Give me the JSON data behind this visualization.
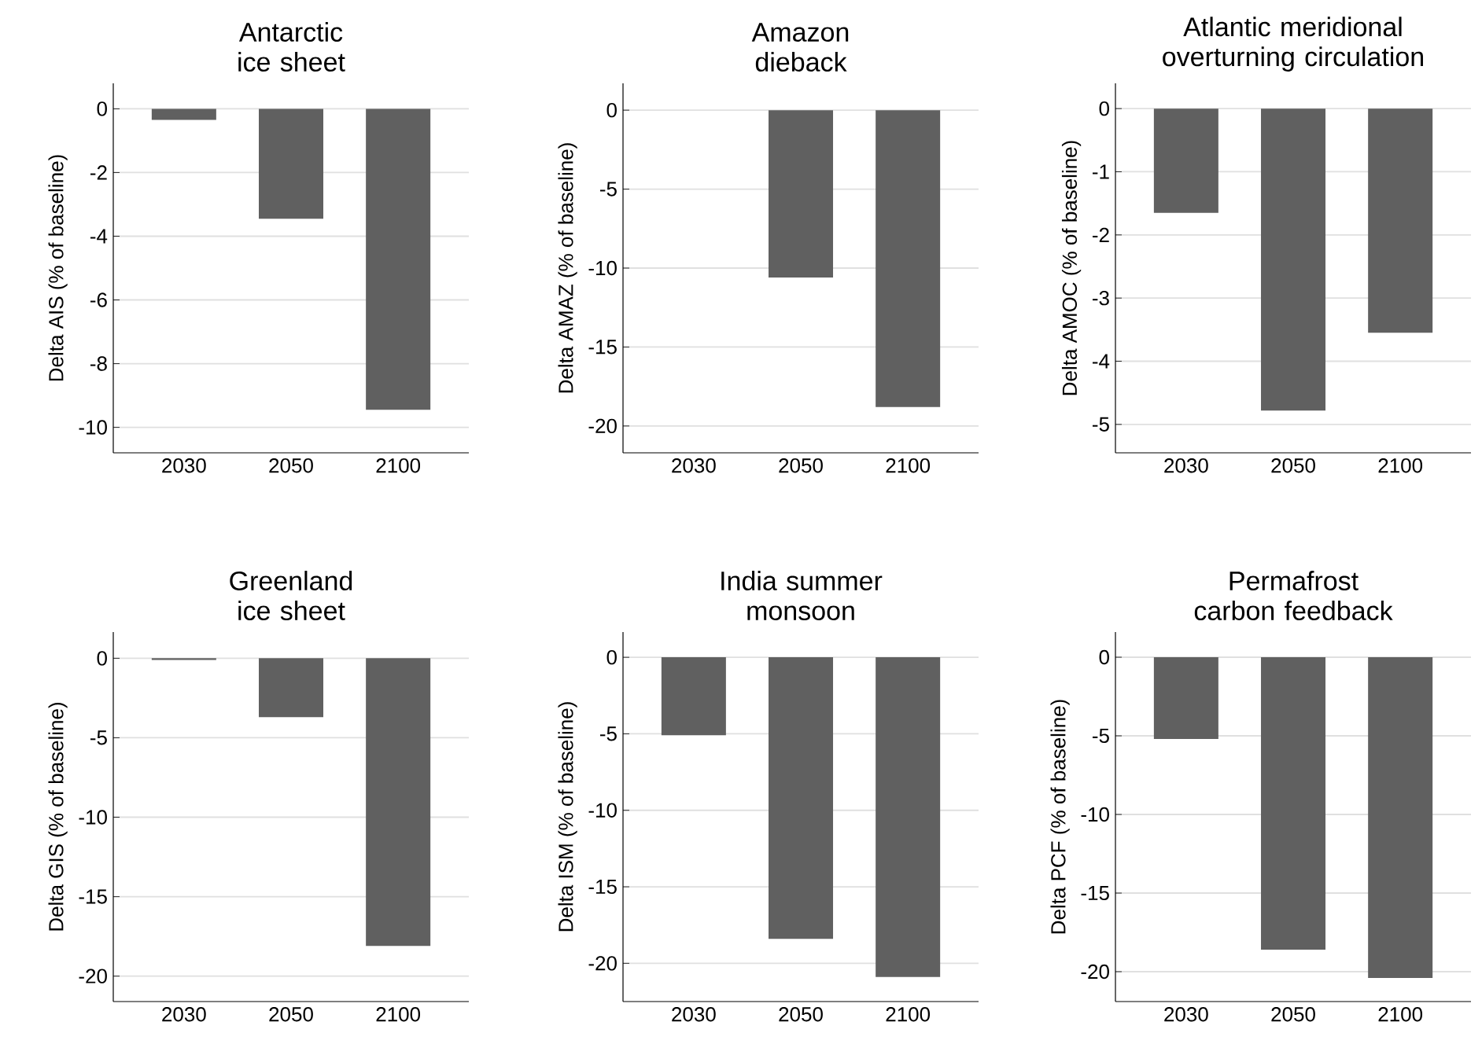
{
  "chart_data": [
    {
      "type": "bar",
      "title": "Antarctic ice sheet",
      "ylabel": "Delta AIS (% of baseline)",
      "categories": [
        "2030",
        "2050",
        "2100"
      ],
      "values": [
        -0.35,
        -3.45,
        -9.45
      ],
      "color": "#606060",
      "ylim": [
        -10.8,
        0.8
      ],
      "yticks": [
        0,
        -2,
        -4,
        -6,
        -8,
        -10
      ],
      "grid": "y"
    },
    {
      "type": "bar",
      "title": "Amazon dieback",
      "ylabel": "Delta AMAZ (% of baseline)",
      "categories": [
        "2030",
        "2050",
        "2100"
      ],
      "values": [
        0,
        -10.6,
        -18.8
      ],
      "color": "#606060",
      "ylim": [
        -21.7,
        1.7
      ],
      "yticks": [
        0,
        -5,
        -10,
        -15,
        -20
      ],
      "grid": "y"
    },
    {
      "type": "bar",
      "title": "Atlantic meridional overturning circulation",
      "ylabel": "Delta AMOC (% of baseline)",
      "categories": [
        "2030",
        "2050",
        "2100"
      ],
      "values": [
        -1.65,
        -4.78,
        -3.55
      ],
      "color": "#606060",
      "ylim": [
        -5.45,
        0.4
      ],
      "yticks": [
        0,
        -1,
        -2,
        -3,
        -4,
        -5
      ],
      "grid": "y"
    },
    {
      "type": "bar",
      "title": "Greenland ice sheet",
      "ylabel": "Delta GIS (% of baseline)",
      "categories": [
        "2030",
        "2050",
        "2100"
      ],
      "values": [
        -0.1,
        -3.7,
        -18.1
      ],
      "color": "#606060",
      "ylim": [
        -21.6,
        1.65
      ],
      "yticks": [
        0,
        -5,
        -10,
        -15,
        -20
      ],
      "grid": "y"
    },
    {
      "type": "bar",
      "title": "India summer monsoon",
      "ylabel": "Delta ISM (% of baseline)",
      "categories": [
        "2030",
        "2050",
        "2100"
      ],
      "values": [
        -5.1,
        -18.4,
        -20.9
      ],
      "color": "#606060",
      "ylim": [
        -22.5,
        1.65
      ],
      "yticks": [
        0,
        -5,
        -10,
        -15,
        -20
      ],
      "grid": "y"
    },
    {
      "type": "bar",
      "title": "Permafrost carbon feedback",
      "ylabel": "Delta PCF (% of baseline)",
      "categories": [
        "2030",
        "2050",
        "2100"
      ],
      "values": [
        -5.2,
        -18.6,
        -20.4
      ],
      "color": "#606060",
      "ylim": [
        -21.9,
        1.6
      ],
      "yticks": [
        0,
        -5,
        -10,
        -15,
        -20
      ],
      "grid": "y"
    }
  ]
}
